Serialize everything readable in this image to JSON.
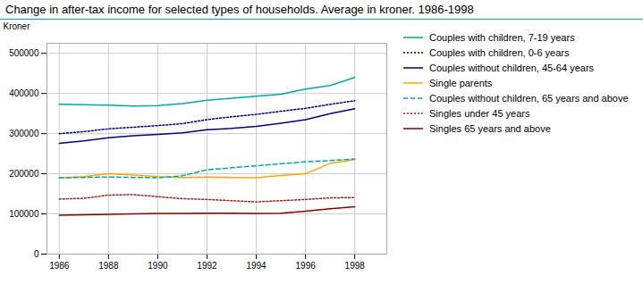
{
  "chart_data": {
    "type": "line",
    "title": "Change in after-tax income for selected types of households. Average in kroner. 1986-1998",
    "ylabel": "Kroner",
    "x": [
      1986,
      1987,
      1988,
      1989,
      1990,
      1991,
      1992,
      1993,
      1994,
      1995,
      1996,
      1997,
      1998
    ],
    "series": [
      {
        "name": "Couples with children, 7-19 years",
        "color": "#00AAA0",
        "line_style": "solid",
        "values": [
          373000,
          372000,
          371000,
          369000,
          370000,
          375000,
          383000,
          388000,
          393000,
          398000,
          411000,
          420000,
          440000
        ]
      },
      {
        "name": "Couples with children, 0-6 years",
        "color": "#00008B",
        "line_style": "dotted",
        "values": [
          300000,
          305000,
          312000,
          316000,
          320000,
          325000,
          335000,
          342000,
          348000,
          356000,
          363000,
          373000,
          382000
        ]
      },
      {
        "name": "Couples without children, 45-64 years",
        "color": "#00008B",
        "line_style": "solid",
        "values": [
          276000,
          282000,
          290000,
          295000,
          298000,
          302000,
          310000,
          313000,
          318000,
          326000,
          335000,
          350000,
          362000
        ]
      },
      {
        "name": "Single parents",
        "color": "#FFA500",
        "line_style": "solid",
        "values": [
          190000,
          193000,
          200000,
          197000,
          193000,
          191000,
          192000,
          191000,
          190000,
          196000,
          200000,
          226000,
          235000
        ]
      },
      {
        "name": "Couples without children, 65 years and above",
        "color": "#00AAA0",
        "line_style": "dashed",
        "values": [
          190000,
          191000,
          192000,
          191000,
          190000,
          195000,
          210000,
          215000,
          220000,
          225000,
          230000,
          233000,
          237000
        ]
      },
      {
        "name": "Singles under 45 years",
        "color": "#AA2222",
        "line_style": "dotted",
        "values": [
          137000,
          139000,
          147000,
          148000,
          143000,
          138000,
          136000,
          133000,
          130000,
          133000,
          136000,
          140000,
          141000
        ]
      },
      {
        "name": "Singles 65 years and above",
        "color": "#8B0000",
        "line_style": "solid",
        "values": [
          97000,
          98000,
          99000,
          100000,
          101000,
          101000,
          102000,
          102000,
          101000,
          102000,
          107000,
          113000,
          118000
        ]
      }
    ],
    "xlim": [
      1985.5,
      1999.3
    ],
    "xticks": [
      1986,
      1988,
      1990,
      1992,
      1994,
      1996,
      1998
    ],
    "ylim": [
      0,
      525000
    ],
    "yticks": [
      0,
      100000,
      200000,
      300000,
      400000,
      500000
    ],
    "grid": true,
    "legend": "right"
  }
}
